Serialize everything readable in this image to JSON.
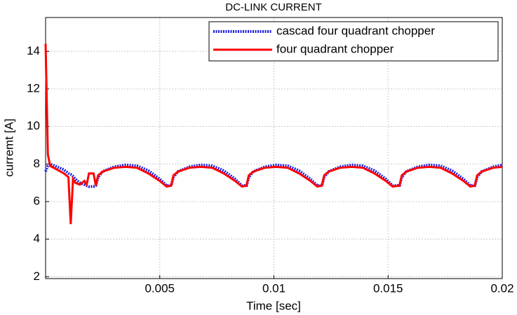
{
  "chart_data": {
    "type": "line",
    "title": "DC-LINK CURRENT",
    "xlabel": "Time  [sec]",
    "ylabel": "curremt [A]",
    "x": [
      0,
      0.0001,
      0.0002,
      0.0005,
      0.0008,
      0.001,
      0.0011,
      0.0012,
      0.0013,
      0.0015,
      0.0017,
      0.0018,
      0.0019,
      0.0021,
      0.0022,
      0.0023,
      0.0025,
      0.003,
      0.0035,
      0.004,
      0.0045,
      0.005,
      0.0053,
      0.0055,
      0.0056,
      0.0058,
      0.0063,
      0.0068,
      0.0073,
      0.0078,
      0.0083,
      0.0086,
      0.0088,
      0.0089,
      0.0091,
      0.0096,
      0.0101,
      0.0106,
      0.0111,
      0.0116,
      0.0119,
      0.0121,
      0.0122,
      0.0124,
      0.0129,
      0.0134,
      0.0139,
      0.0144,
      0.0149,
      0.0152,
      0.0155,
      0.0156,
      0.0158,
      0.0163,
      0.0168,
      0.0173,
      0.0178,
      0.0183,
      0.0186,
      0.0188,
      0.0189,
      0.0191,
      0.0196,
      0.02
    ],
    "series": [
      {
        "name": "cascad four quadrant chopper",
        "color": "#1f1fe0",
        "dashed": true,
        "values": [
          7.6,
          7.9,
          8.0,
          7.85,
          7.7,
          7.5,
          7.45,
          7.35,
          7.2,
          7.0,
          6.9,
          6.85,
          6.8,
          6.8,
          6.85,
          7.3,
          7.6,
          7.85,
          7.95,
          7.9,
          7.65,
          7.2,
          6.85,
          6.85,
          7.3,
          7.6,
          7.85,
          7.95,
          7.9,
          7.65,
          7.2,
          6.85,
          6.85,
          7.3,
          7.6,
          7.85,
          7.95,
          7.9,
          7.65,
          7.2,
          6.85,
          6.85,
          7.3,
          7.6,
          7.85,
          7.95,
          7.9,
          7.65,
          7.2,
          6.85,
          6.85,
          7.3,
          7.6,
          7.85,
          7.95,
          7.9,
          7.65,
          7.2,
          6.85,
          6.85,
          7.3,
          7.6,
          7.85,
          7.95
        ]
      },
      {
        "name": "four quadrant chopper",
        "color": "#ff0000",
        "dashed": false,
        "values": [
          14.4,
          8.5,
          7.9,
          7.7,
          7.5,
          7.3,
          4.8,
          7.2,
          7.0,
          6.9,
          7.1,
          6.9,
          7.5,
          7.5,
          6.85,
          7.4,
          7.6,
          7.8,
          7.85,
          7.8,
          7.5,
          7.1,
          6.8,
          6.85,
          7.4,
          7.6,
          7.8,
          7.85,
          7.8,
          7.5,
          7.1,
          6.8,
          6.85,
          7.4,
          7.6,
          7.8,
          7.85,
          7.8,
          7.5,
          7.1,
          6.8,
          6.85,
          7.4,
          7.6,
          7.8,
          7.85,
          7.8,
          7.5,
          7.1,
          6.8,
          6.85,
          7.4,
          7.6,
          7.8,
          7.85,
          7.8,
          7.5,
          7.1,
          6.8,
          6.85,
          7.4,
          7.6,
          7.8,
          7.85
        ]
      }
    ],
    "xlim": [
      0,
      0.02
    ],
    "ylim": [
      1.9,
      15.8
    ],
    "xticks": [
      0.005,
      0.01,
      0.015,
      0.02
    ],
    "yticks": [
      2,
      4,
      6,
      8,
      10,
      12,
      14
    ],
    "grid": true,
    "legend": "upper right"
  }
}
